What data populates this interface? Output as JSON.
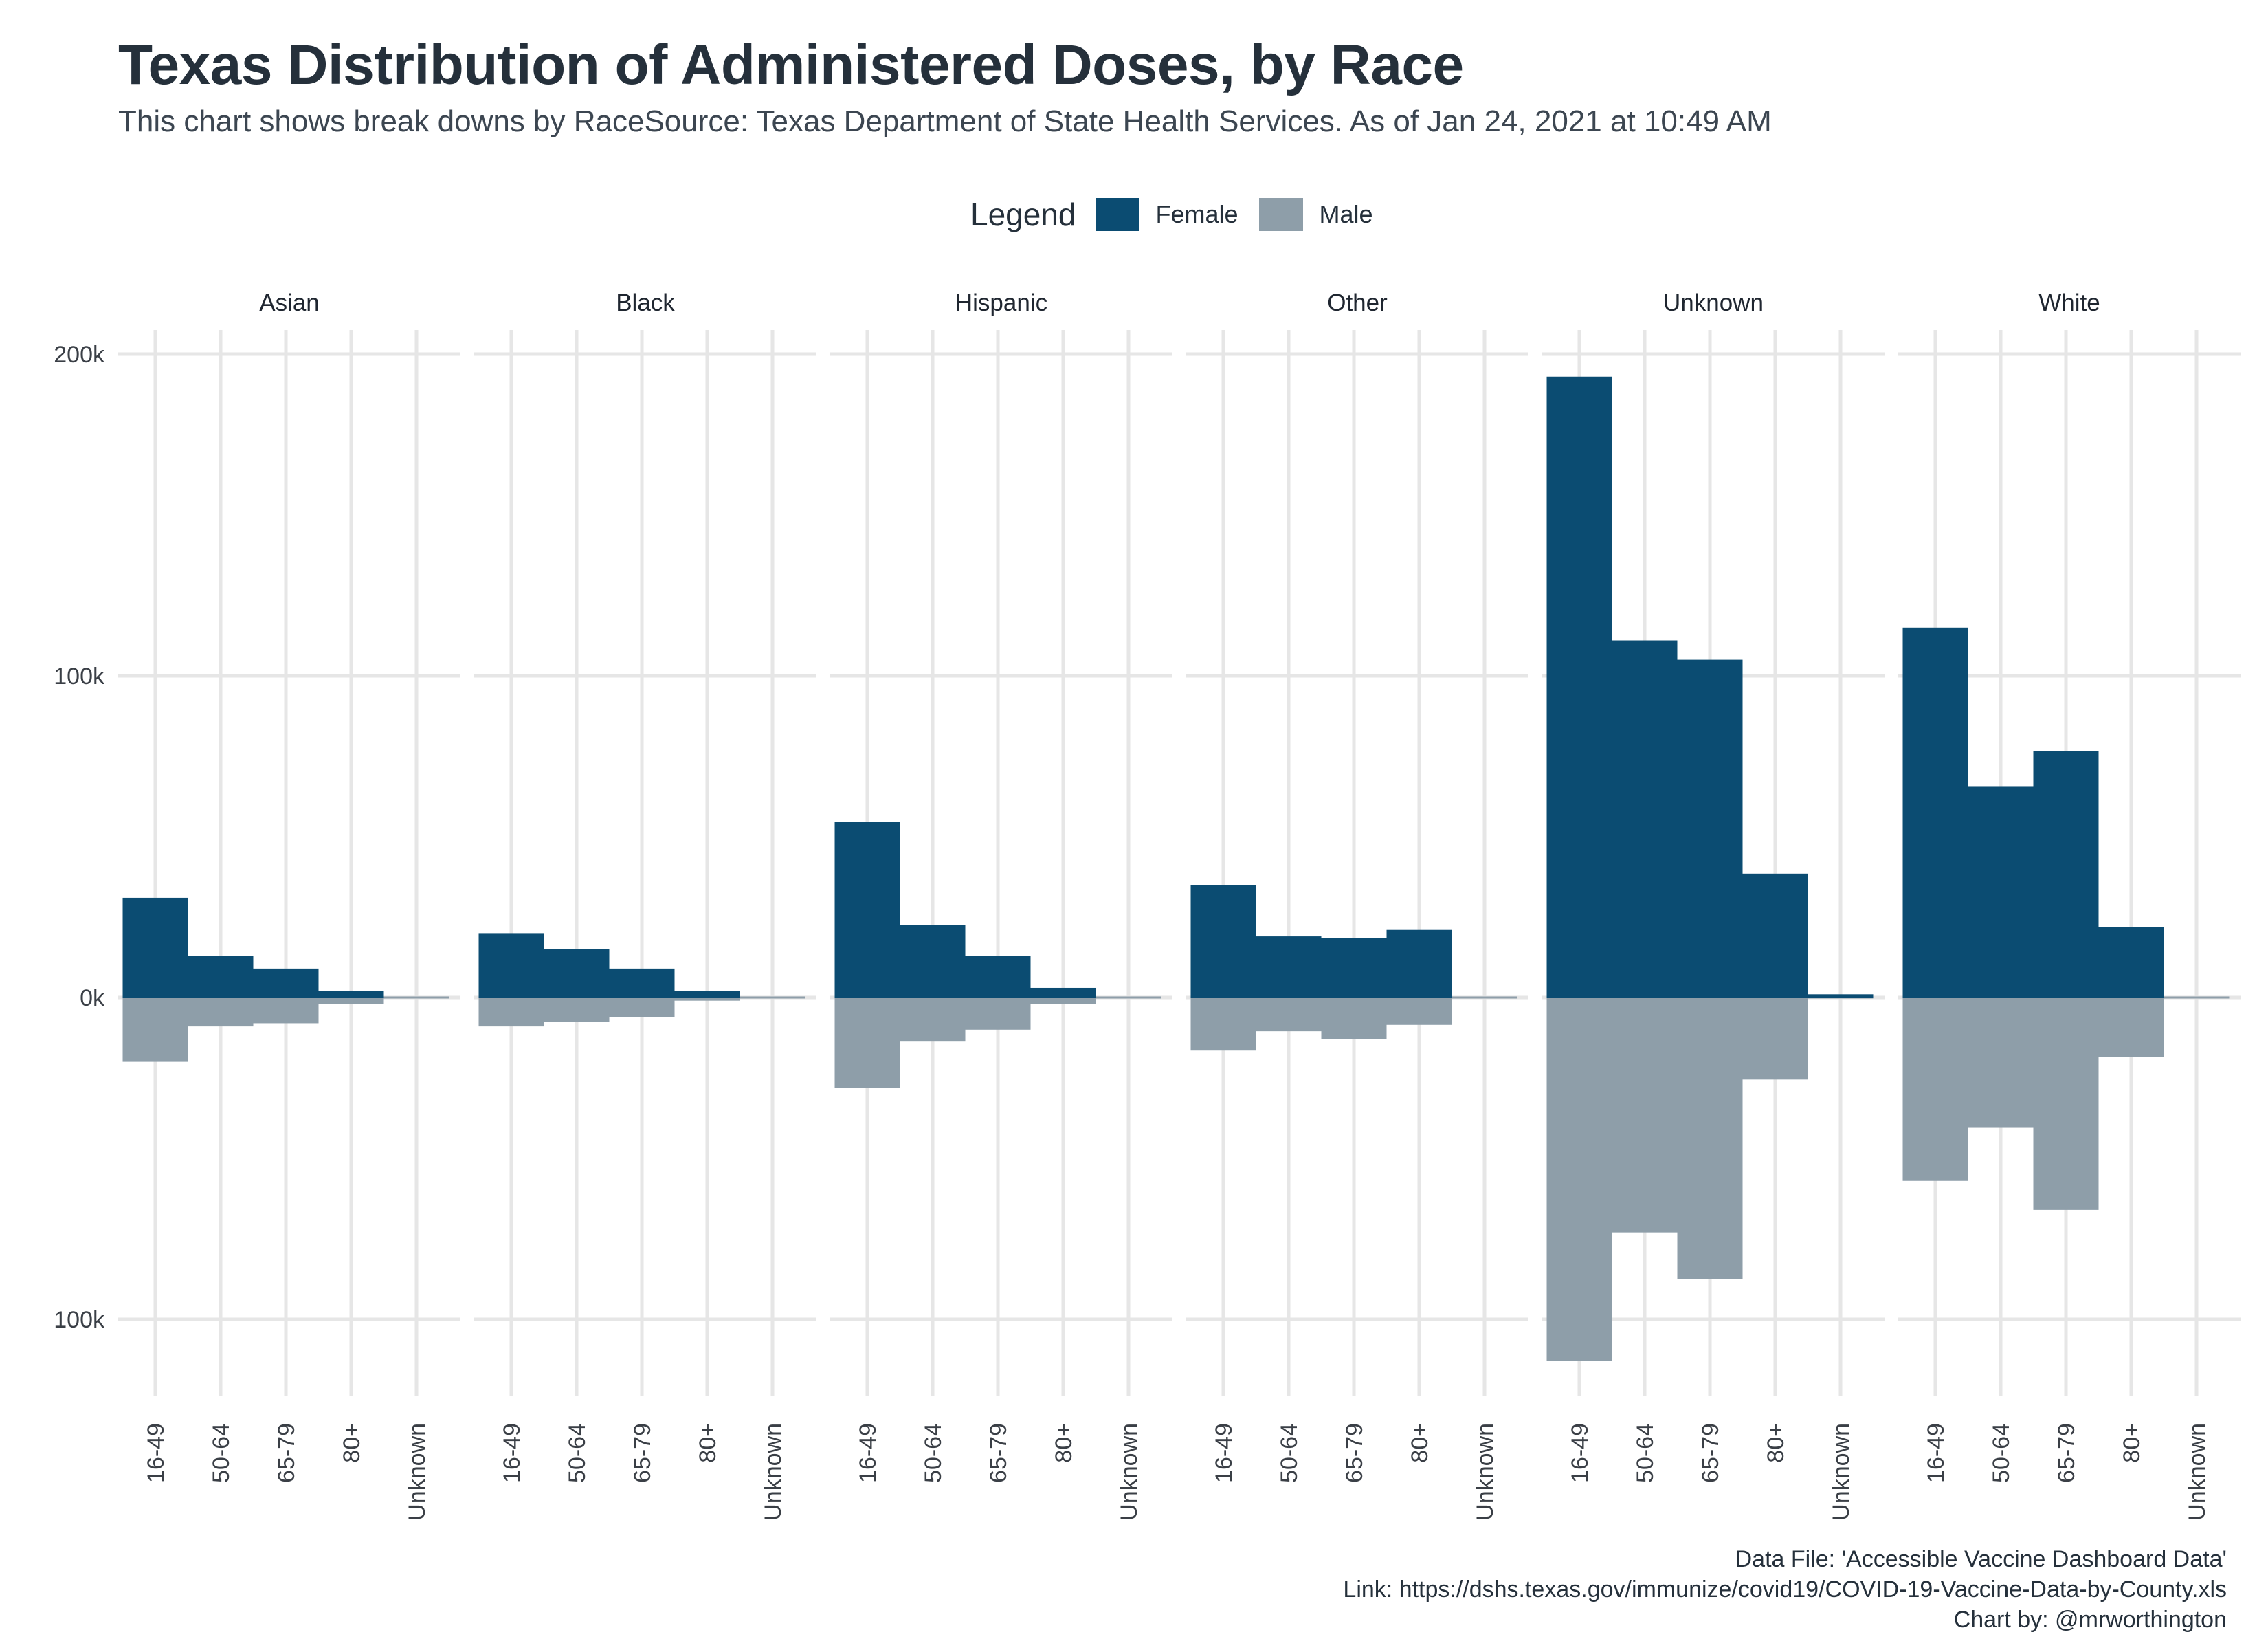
{
  "chart": {
    "title": "Texas Distribution of Administered Doses, by Race",
    "subtitle": "This chart shows break downs by RaceSource: Texas Department of State Health Services. As of Jan 24, 2021 at 10:49 AM",
    "legend": {
      "title": "Legend",
      "items": [
        {
          "label": "Female",
          "color": "#0b4c72"
        },
        {
          "label": "Male",
          "color": "#8e9ea9"
        }
      ]
    },
    "caption": {
      "line1": "Data File: 'Accessible Vaccine Dashboard Data'",
      "line2": "Link: https://dshs.texas.gov/immunize/covid19/COVID-19-Vaccine-Data-by-County.xls",
      "line3": "Chart by: @mrworthington"
    }
  },
  "chart_data": {
    "type": "bar",
    "layout": "faceted population-pyramid (female above, male below zero)",
    "categories": [
      "16-49",
      "50-64",
      "65-79",
      "80+",
      "Unknown"
    ],
    "y_tick_labels": [
      "200k",
      "100k",
      "0k",
      "100k"
    ],
    "y_ticks": [
      200000,
      100000,
      0,
      -100000
    ],
    "ylim": [
      -125000,
      208000
    ],
    "grid": true,
    "legend_position": "top",
    "series_colors": {
      "Female": "#0b4c72",
      "Male": "#8e9ea9"
    },
    "facets": [
      {
        "name": "Asian",
        "series": [
          {
            "name": "Female",
            "values": [
              31000,
              13000,
              9000,
              2000,
              0
            ]
          },
          {
            "name": "Male",
            "values": [
              -20000,
              -9000,
              -8000,
              -2000,
              0
            ]
          }
        ]
      },
      {
        "name": "Black",
        "series": [
          {
            "name": "Female",
            "values": [
              20000,
              15000,
              9000,
              2000,
              0
            ]
          },
          {
            "name": "Male",
            "values": [
              -9000,
              -7500,
              -6000,
              -1000,
              0
            ]
          }
        ]
      },
      {
        "name": "Hispanic",
        "series": [
          {
            "name": "Female",
            "values": [
              54500,
              22500,
              13000,
              3000,
              0
            ]
          },
          {
            "name": "Male",
            "values": [
              -28000,
              -13500,
              -10000,
              -2000,
              0
            ]
          }
        ]
      },
      {
        "name": "Other",
        "series": [
          {
            "name": "Female",
            "values": [
              35000,
              19000,
              18500,
              21000,
              0
            ]
          },
          {
            "name": "Male",
            "values": [
              -16500,
              -10500,
              -13000,
              -8500,
              0
            ]
          }
        ]
      },
      {
        "name": "Unknown",
        "series": [
          {
            "name": "Female",
            "values": [
              193000,
              111000,
              105000,
              38500,
              1000
            ]
          },
          {
            "name": "Male",
            "values": [
              -113000,
              -73000,
              -87500,
              -25500,
              0
            ]
          }
        ]
      },
      {
        "name": "White",
        "series": [
          {
            "name": "Female",
            "values": [
              115000,
              65500,
              76500,
              22000,
              0
            ]
          },
          {
            "name": "Male",
            "values": [
              -57000,
              -40500,
              -66000,
              -18500,
              0
            ]
          }
        ]
      }
    ]
  }
}
